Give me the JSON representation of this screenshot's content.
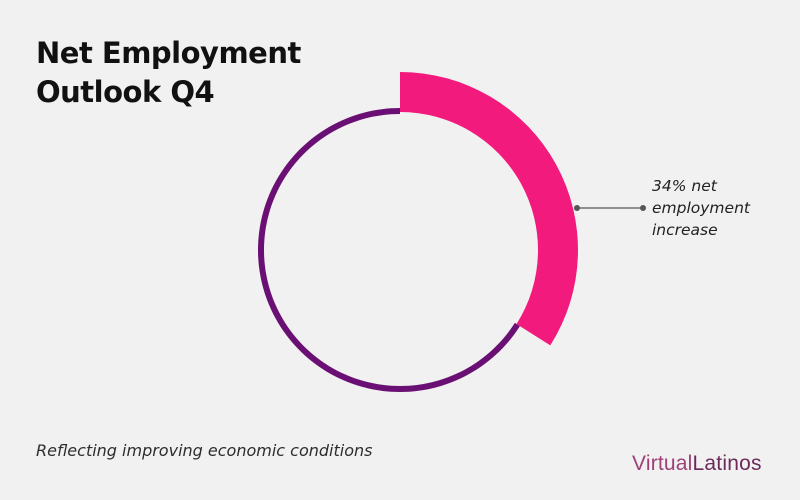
{
  "header": {
    "title": "Net Employment Outlook Q4"
  },
  "footer": {
    "subtitle": "Reflecting improving economic conditions",
    "logo": {
      "part_a": "Virtual",
      "part_b": "Latinos"
    }
  },
  "chart_data": {
    "type": "pie",
    "variant": "donut",
    "title": "Net Employment Outlook Q4",
    "slices": [
      {
        "label": "net employment increase",
        "value": 34,
        "color": "#f21b7d"
      },
      {
        "label": "",
        "value": 66,
        "color": "#6a0f73"
      }
    ],
    "annotation": "34% net\nemployment\nincrease",
    "legend": "none"
  }
}
